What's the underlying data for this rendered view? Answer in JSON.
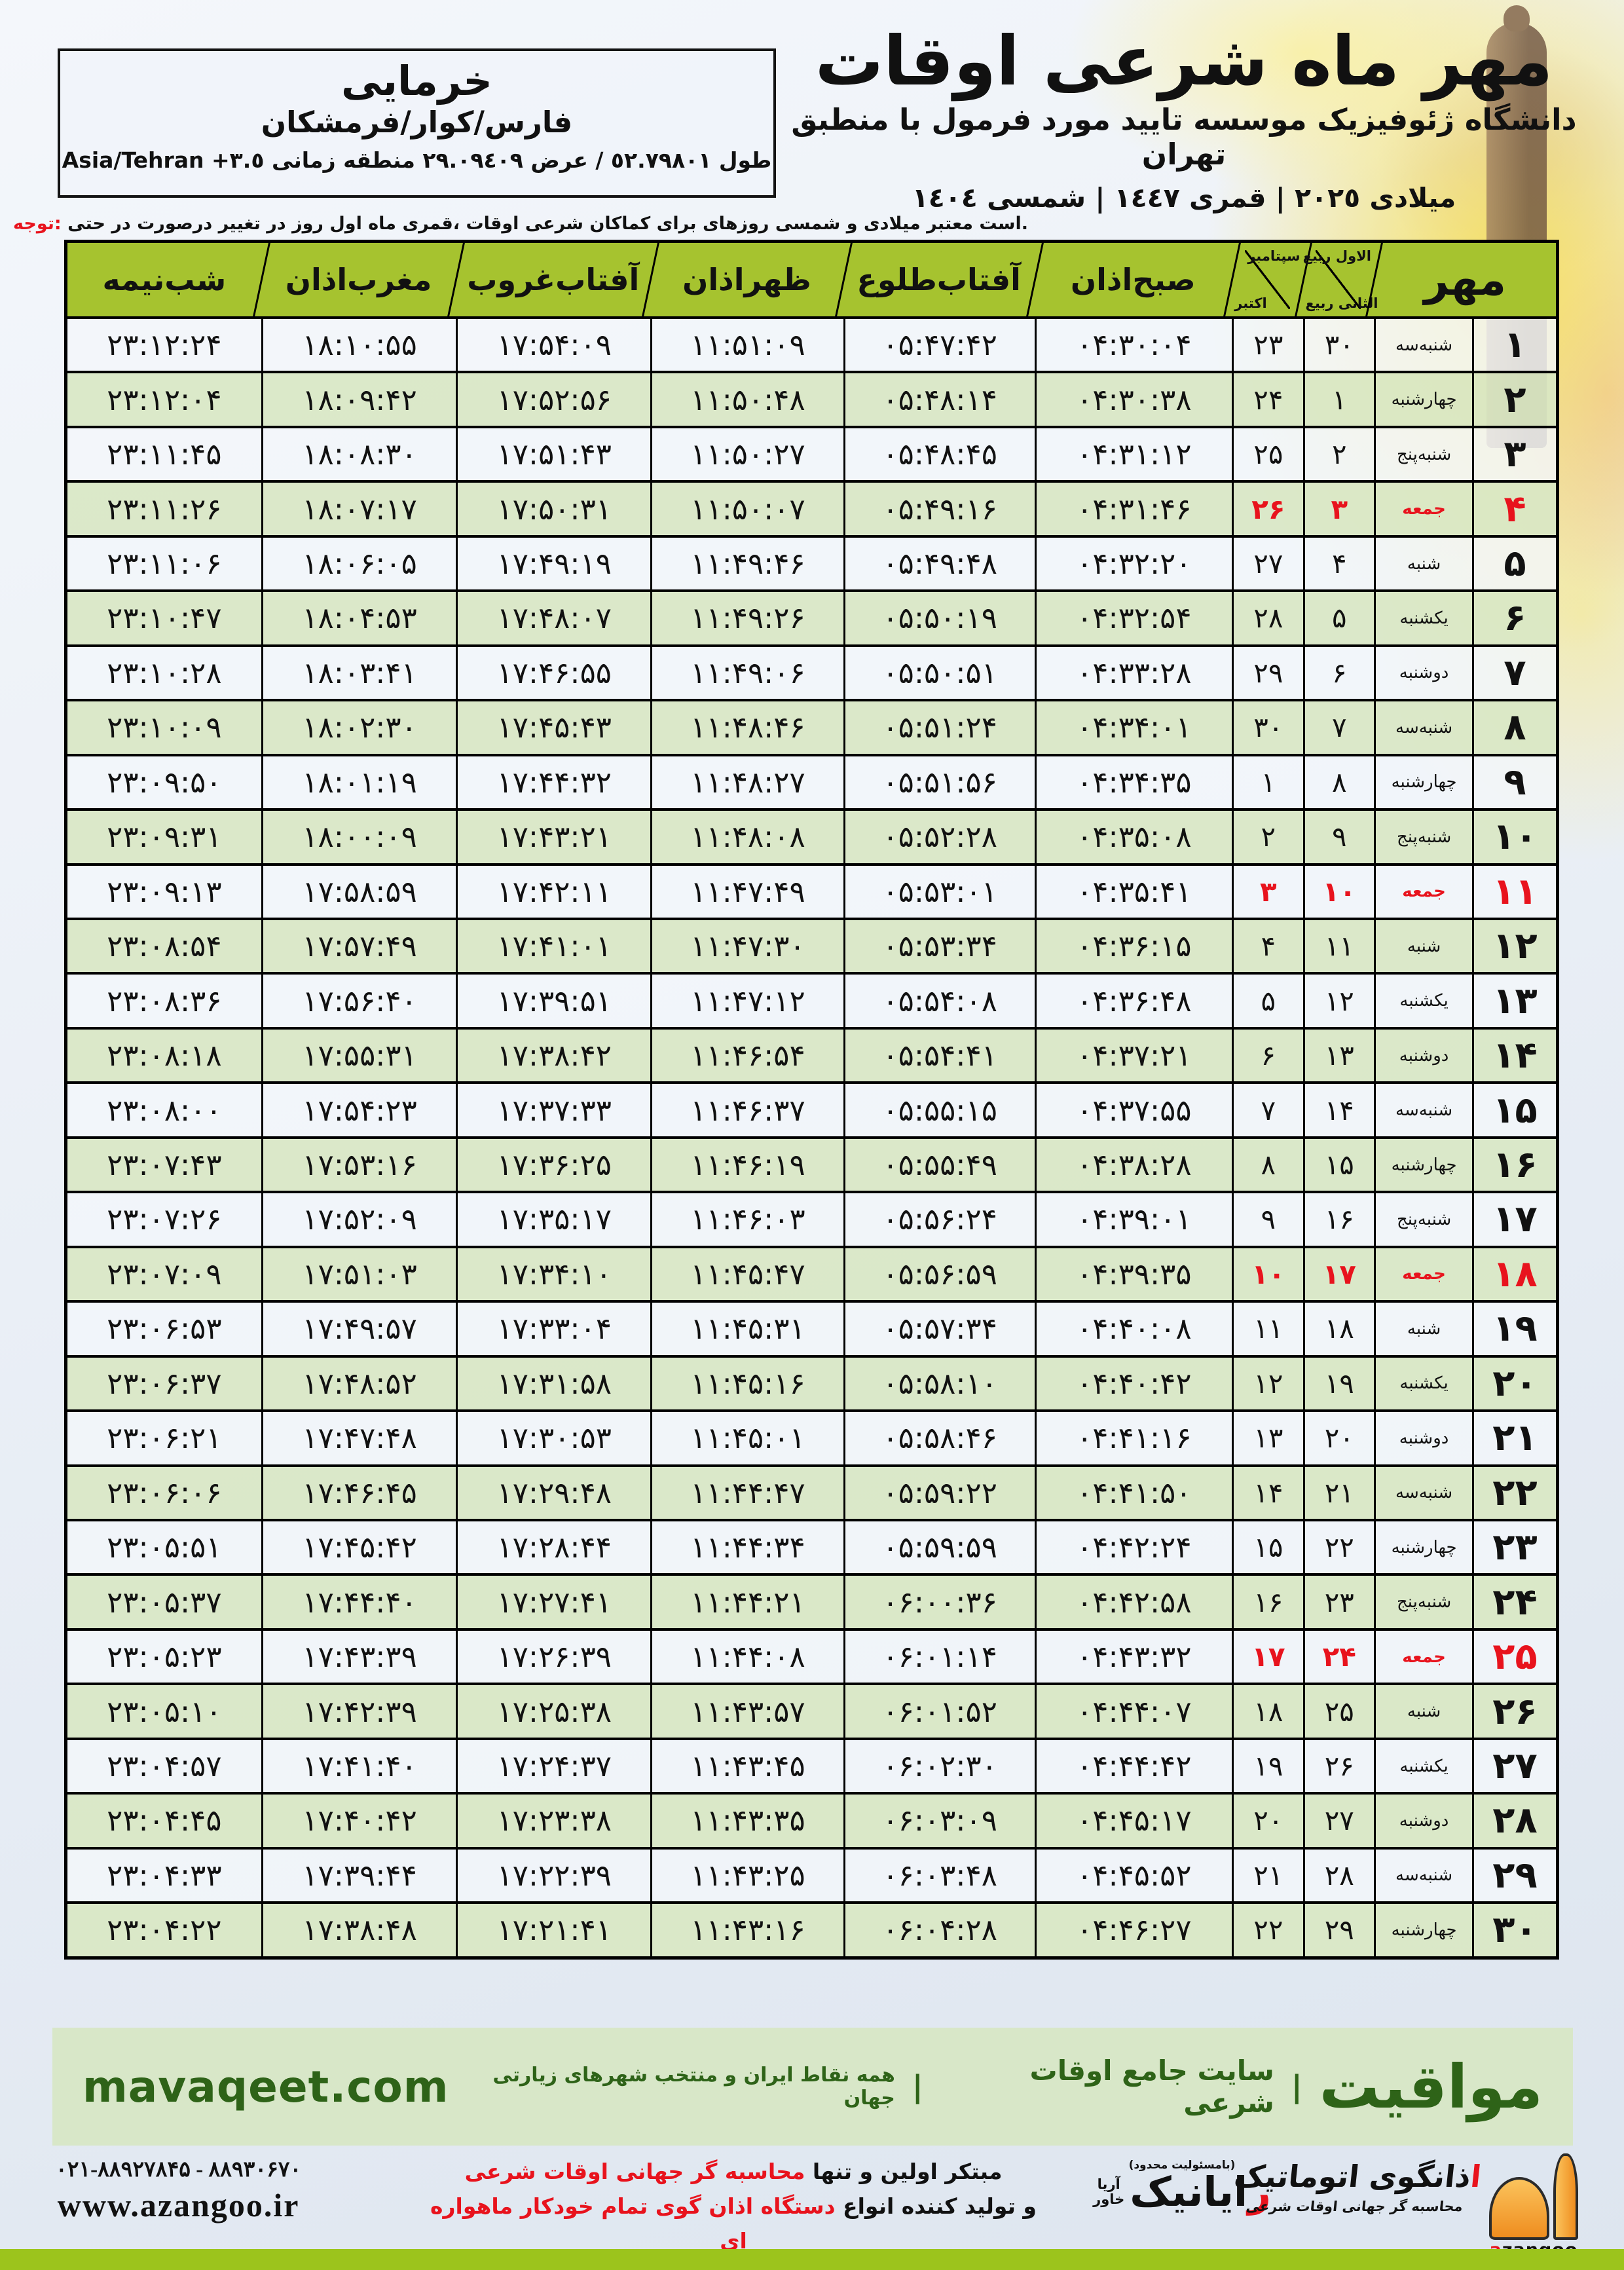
{
  "header": {
    "title": "اوقات شرعی ماه مهر",
    "subtitle": "منطبق با فرمول مورد تایید موسسه ژئوفیزیک دانشگاه تهران",
    "years": "١٤٠٤ شمسی | ١٤٤٧ قمری | ٢٠٢٥ میلادی"
  },
  "location_box": {
    "city": "خرمایی",
    "region_parts": [
      "فرمشکان",
      "کوار",
      "فارس"
    ],
    "coords_fa": "طول ٥٢.٧٩٨٠١ / عرض ٢٩.٠٩٤٠٩ منطقه زمانی",
    "timezone": "Asia/Tehran +٣.٥"
  },
  "note": {
    "text": "توجه: حتی در درصورت تغییر در روز اول ماه قمری، اوقات شرعی کماکان برای روزهای شمسی و میلادی معتبر است."
  },
  "table": {
    "month_label": "مهر",
    "lunar_top": "ربیع الاول",
    "lunar_bottom": "ربیع الثانی",
    "greg_top": "سپتامبر",
    "greg_bottom": "اکتبر",
    "columns": {
      "sobh": "اذان صبح",
      "tolu": "طلوع آفتاب",
      "zohr": "اذان ظهر",
      "ghorub": "غروب آفتاب",
      "maghreb": "اذان مغرب",
      "nimeshab": "نیمه شب"
    },
    "rows": [
      {
        "day": "۱",
        "weekday": "سه شنبه",
        "lunar": "۳۰",
        "greg": "۲۳",
        "sobh": "۰۴:۳۰:۰۴",
        "tolu": "۰۵:۴۷:۴۲",
        "zohr": "۱۱:۵۱:۰۹",
        "ghorub": "۱۷:۵۴:۰۹",
        "maghreb": "۱۸:۱۰:۵۵",
        "nimeshab": "۲۳:۱۲:۲۴",
        "friday": false
      },
      {
        "day": "۲",
        "weekday": "چهارشنبه",
        "lunar": "۱",
        "greg": "۲۴",
        "sobh": "۰۴:۳۰:۳۸",
        "tolu": "۰۵:۴۸:۱۴",
        "zohr": "۱۱:۵۰:۴۸",
        "ghorub": "۱۷:۵۲:۵۶",
        "maghreb": "۱۸:۰۹:۴۲",
        "nimeshab": "۲۳:۱۲:۰۴",
        "friday": false
      },
      {
        "day": "۳",
        "weekday": "پنج شنبه",
        "lunar": "۲",
        "greg": "۲۵",
        "sobh": "۰۴:۳۱:۱۲",
        "tolu": "۰۵:۴۸:۴۵",
        "zohr": "۱۱:۵۰:۲۷",
        "ghorub": "۱۷:۵۱:۴۳",
        "maghreb": "۱۸:۰۸:۳۰",
        "nimeshab": "۲۳:۱۱:۴۵",
        "friday": false
      },
      {
        "day": "۴",
        "weekday": "جمعه",
        "lunar": "۳",
        "greg": "۲۶",
        "sobh": "۰۴:۳۱:۴۶",
        "tolu": "۰۵:۴۹:۱۶",
        "zohr": "۱۱:۵۰:۰۷",
        "ghorub": "۱۷:۵۰:۳۱",
        "maghreb": "۱۸:۰۷:۱۷",
        "nimeshab": "۲۳:۱۱:۲۶",
        "friday": true
      },
      {
        "day": "۵",
        "weekday": "شنبه",
        "lunar": "۴",
        "greg": "۲۷",
        "sobh": "۰۴:۳۲:۲۰",
        "tolu": "۰۵:۴۹:۴۸",
        "zohr": "۱۱:۴۹:۴۶",
        "ghorub": "۱۷:۴۹:۱۹",
        "maghreb": "۱۸:۰۶:۰۵",
        "nimeshab": "۲۳:۱۱:۰۶",
        "friday": false
      },
      {
        "day": "۶",
        "weekday": "یکشنبه",
        "lunar": "۵",
        "greg": "۲۸",
        "sobh": "۰۴:۳۲:۵۴",
        "tolu": "۰۵:۵۰:۱۹",
        "zohr": "۱۱:۴۹:۲۶",
        "ghorub": "۱۷:۴۸:۰۷",
        "maghreb": "۱۸:۰۴:۵۳",
        "nimeshab": "۲۳:۱۰:۴۷",
        "friday": false
      },
      {
        "day": "۷",
        "weekday": "دوشنبه",
        "lunar": "۶",
        "greg": "۲۹",
        "sobh": "۰۴:۳۳:۲۸",
        "tolu": "۰۵:۵۰:۵۱",
        "zohr": "۱۱:۴۹:۰۶",
        "ghorub": "۱۷:۴۶:۵۵",
        "maghreb": "۱۸:۰۳:۴۱",
        "nimeshab": "۲۳:۱۰:۲۸",
        "friday": false
      },
      {
        "day": "۸",
        "weekday": "سه شنبه",
        "lunar": "۷",
        "greg": "۳۰",
        "sobh": "۰۴:۳۴:۰۱",
        "tolu": "۰۵:۵۱:۲۴",
        "zohr": "۱۱:۴۸:۴۶",
        "ghorub": "۱۷:۴۵:۴۳",
        "maghreb": "۱۸:۰۲:۳۰",
        "nimeshab": "۲۳:۱۰:۰۹",
        "friday": false
      },
      {
        "day": "۹",
        "weekday": "چهارشنبه",
        "lunar": "۸",
        "greg": "۱",
        "sobh": "۰۴:۳۴:۳۵",
        "tolu": "۰۵:۵۱:۵۶",
        "zohr": "۱۱:۴۸:۲۷",
        "ghorub": "۱۷:۴۴:۳۲",
        "maghreb": "۱۸:۰۱:۱۹",
        "nimeshab": "۲۳:۰۹:۵۰",
        "friday": false
      },
      {
        "day": "۱۰",
        "weekday": "پنج شنبه",
        "lunar": "۹",
        "greg": "۲",
        "sobh": "۰۴:۳۵:۰۸",
        "tolu": "۰۵:۵۲:۲۸",
        "zohr": "۱۱:۴۸:۰۸",
        "ghorub": "۱۷:۴۳:۲۱",
        "maghreb": "۱۸:۰۰:۰۹",
        "nimeshab": "۲۳:۰۹:۳۱",
        "friday": false
      },
      {
        "day": "۱۱",
        "weekday": "جمعه",
        "lunar": "۱۰",
        "greg": "۳",
        "sobh": "۰۴:۳۵:۴۱",
        "tolu": "۰۵:۵۳:۰۱",
        "zohr": "۱۱:۴۷:۴۹",
        "ghorub": "۱۷:۴۲:۱۱",
        "maghreb": "۱۷:۵۸:۵۹",
        "nimeshab": "۲۳:۰۹:۱۳",
        "friday": true
      },
      {
        "day": "۱۲",
        "weekday": "شنبه",
        "lunar": "۱۱",
        "greg": "۴",
        "sobh": "۰۴:۳۶:۱۵",
        "tolu": "۰۵:۵۳:۳۴",
        "zohr": "۱۱:۴۷:۳۰",
        "ghorub": "۱۷:۴۱:۰۱",
        "maghreb": "۱۷:۵۷:۴۹",
        "nimeshab": "۲۳:۰۸:۵۴",
        "friday": false
      },
      {
        "day": "۱۳",
        "weekday": "یکشنبه",
        "lunar": "۱۲",
        "greg": "۵",
        "sobh": "۰۴:۳۶:۴۸",
        "tolu": "۰۵:۵۴:۰۸",
        "zohr": "۱۱:۴۷:۱۲",
        "ghorub": "۱۷:۳۹:۵۱",
        "maghreb": "۱۷:۵۶:۴۰",
        "nimeshab": "۲۳:۰۸:۳۶",
        "friday": false
      },
      {
        "day": "۱۴",
        "weekday": "دوشنبه",
        "lunar": "۱۳",
        "greg": "۶",
        "sobh": "۰۴:۳۷:۲۱",
        "tolu": "۰۵:۵۴:۴۱",
        "zohr": "۱۱:۴۶:۵۴",
        "ghorub": "۱۷:۳۸:۴۲",
        "maghreb": "۱۷:۵۵:۳۱",
        "nimeshab": "۲۳:۰۸:۱۸",
        "friday": false
      },
      {
        "day": "۱۵",
        "weekday": "سه شنبه",
        "lunar": "۱۴",
        "greg": "۷",
        "sobh": "۰۴:۳۷:۵۵",
        "tolu": "۰۵:۵۵:۱۵",
        "zohr": "۱۱:۴۶:۳۷",
        "ghorub": "۱۷:۳۷:۳۳",
        "maghreb": "۱۷:۵۴:۲۳",
        "nimeshab": "۲۳:۰۸:۰۰",
        "friday": false
      },
      {
        "day": "۱۶",
        "weekday": "چهارشنبه",
        "lunar": "۱۵",
        "greg": "۸",
        "sobh": "۰۴:۳۸:۲۸",
        "tolu": "۰۵:۵۵:۴۹",
        "zohr": "۱۱:۴۶:۱۹",
        "ghorub": "۱۷:۳۶:۲۵",
        "maghreb": "۱۷:۵۳:۱۶",
        "nimeshab": "۲۳:۰۷:۴۳",
        "friday": false
      },
      {
        "day": "۱۷",
        "weekday": "پنج شنبه",
        "lunar": "۱۶",
        "greg": "۹",
        "sobh": "۰۴:۳۹:۰۱",
        "tolu": "۰۵:۵۶:۲۴",
        "zohr": "۱۱:۴۶:۰۳",
        "ghorub": "۱۷:۳۵:۱۷",
        "maghreb": "۱۷:۵۲:۰۹",
        "nimeshab": "۲۳:۰۷:۲۶",
        "friday": false
      },
      {
        "day": "۱۸",
        "weekday": "جمعه",
        "lunar": "۱۷",
        "greg": "۱۰",
        "sobh": "۰۴:۳۹:۳۵",
        "tolu": "۰۵:۵۶:۵۹",
        "zohr": "۱۱:۴۵:۴۷",
        "ghorub": "۱۷:۳۴:۱۰",
        "maghreb": "۱۷:۵۱:۰۳",
        "nimeshab": "۲۳:۰۷:۰۹",
        "friday": true
      },
      {
        "day": "۱۹",
        "weekday": "شنبه",
        "lunar": "۱۸",
        "greg": "۱۱",
        "sobh": "۰۴:۴۰:۰۸",
        "tolu": "۰۵:۵۷:۳۴",
        "zohr": "۱۱:۴۵:۳۱",
        "ghorub": "۱۷:۳۳:۰۴",
        "maghreb": "۱۷:۴۹:۵۷",
        "nimeshab": "۲۳:۰۶:۵۳",
        "friday": false
      },
      {
        "day": "۲۰",
        "weekday": "یکشنبه",
        "lunar": "۱۹",
        "greg": "۱۲",
        "sobh": "۰۴:۴۰:۴۲",
        "tolu": "۰۵:۵۸:۱۰",
        "zohr": "۱۱:۴۵:۱۶",
        "ghorub": "۱۷:۳۱:۵۸",
        "maghreb": "۱۷:۴۸:۵۲",
        "nimeshab": "۲۳:۰۶:۳۷",
        "friday": false
      },
      {
        "day": "۲۱",
        "weekday": "دوشنبه",
        "lunar": "۲۰",
        "greg": "۱۳",
        "sobh": "۰۴:۴۱:۱۶",
        "tolu": "۰۵:۵۸:۴۶",
        "zohr": "۱۱:۴۵:۰۱",
        "ghorub": "۱۷:۳۰:۵۳",
        "maghreb": "۱۷:۴۷:۴۸",
        "nimeshab": "۲۳:۰۶:۲۱",
        "friday": false
      },
      {
        "day": "۲۲",
        "weekday": "سه شنبه",
        "lunar": "۲۱",
        "greg": "۱۴",
        "sobh": "۰۴:۴۱:۵۰",
        "tolu": "۰۵:۵۹:۲۲",
        "zohr": "۱۱:۴۴:۴۷",
        "ghorub": "۱۷:۲۹:۴۸",
        "maghreb": "۱۷:۴۶:۴۵",
        "nimeshab": "۲۳:۰۶:۰۶",
        "friday": false
      },
      {
        "day": "۲۳",
        "weekday": "چهارشنبه",
        "lunar": "۲۲",
        "greg": "۱۵",
        "sobh": "۰۴:۴۲:۲۴",
        "tolu": "۰۵:۵۹:۵۹",
        "zohr": "۱۱:۴۴:۳۴",
        "ghorub": "۱۷:۲۸:۴۴",
        "maghreb": "۱۷:۴۵:۴۲",
        "nimeshab": "۲۳:۰۵:۵۱",
        "friday": false
      },
      {
        "day": "۲۴",
        "weekday": "پنج شنبه",
        "lunar": "۲۳",
        "greg": "۱۶",
        "sobh": "۰۴:۴۲:۵۸",
        "tolu": "۰۶:۰۰:۳۶",
        "zohr": "۱۱:۴۴:۲۱",
        "ghorub": "۱۷:۲۷:۴۱",
        "maghreb": "۱۷:۴۴:۴۰",
        "nimeshab": "۲۳:۰۵:۳۷",
        "friday": false
      },
      {
        "day": "۲۵",
        "weekday": "جمعه",
        "lunar": "۲۴",
        "greg": "۱۷",
        "sobh": "۰۴:۴۳:۳۲",
        "tolu": "۰۶:۰۱:۱۴",
        "zohr": "۱۱:۴۴:۰۸",
        "ghorub": "۱۷:۲۶:۳۹",
        "maghreb": "۱۷:۴۳:۳۹",
        "nimeshab": "۲۳:۰۵:۲۳",
        "friday": true
      },
      {
        "day": "۲۶",
        "weekday": "شنبه",
        "lunar": "۲۵",
        "greg": "۱۸",
        "sobh": "۰۴:۴۴:۰۷",
        "tolu": "۰۶:۰۱:۵۲",
        "zohr": "۱۱:۴۳:۵۷",
        "ghorub": "۱۷:۲۵:۳۸",
        "maghreb": "۱۷:۴۲:۳۹",
        "nimeshab": "۲۳:۰۵:۱۰",
        "friday": false
      },
      {
        "day": "۲۷",
        "weekday": "یکشنبه",
        "lunar": "۲۶",
        "greg": "۱۹",
        "sobh": "۰۴:۴۴:۴۲",
        "tolu": "۰۶:۰۲:۳۰",
        "zohr": "۱۱:۴۳:۴۵",
        "ghorub": "۱۷:۲۴:۳۷",
        "maghreb": "۱۷:۴۱:۴۰",
        "nimeshab": "۲۳:۰۴:۵۷",
        "friday": false
      },
      {
        "day": "۲۸",
        "weekday": "دوشنبه",
        "lunar": "۲۷",
        "greg": "۲۰",
        "sobh": "۰۴:۴۵:۱۷",
        "tolu": "۰۶:۰۳:۰۹",
        "zohr": "۱۱:۴۳:۳۵",
        "ghorub": "۱۷:۲۳:۳۸",
        "maghreb": "۱۷:۴۰:۴۲",
        "nimeshab": "۲۳:۰۴:۴۵",
        "friday": false
      },
      {
        "day": "۲۹",
        "weekday": "سه شنبه",
        "lunar": "۲۸",
        "greg": "۲۱",
        "sobh": "۰۴:۴۵:۵۲",
        "tolu": "۰۶:۰۳:۴۸",
        "zohr": "۱۱:۴۳:۲۵",
        "ghorub": "۱۷:۲۲:۳۹",
        "maghreb": "۱۷:۳۹:۴۴",
        "nimeshab": "۲۳:۰۴:۳۳",
        "friday": false
      },
      {
        "day": "۳۰",
        "weekday": "چهارشنبه",
        "lunar": "۲۹",
        "greg": "۲۲",
        "sobh": "۰۴:۴۶:۲۷",
        "tolu": "۰۶:۰۴:۲۸",
        "zohr": "۱۱:۴۳:۱۶",
        "ghorub": "۱۷:۲۱:۴۱",
        "maghreb": "۱۷:۳۸:۴۸",
        "nimeshab": "۲۳:۰۴:۲۲",
        "friday": false
      }
    ]
  },
  "band": {
    "url": "mavaqeet.com",
    "logo": "مواقیت",
    "mid": "سایت جامع اوقات شرعی",
    "small": "همه نقاط ایران و منتخب شهرهای زیارتی جهان",
    "separator": "|"
  },
  "footer": {
    "phone": "۰۲۱-۸۸۹۲۷۸۴۵ - ۸۸۹۳۰۶۷۰",
    "site": "www.azangoo.ir",
    "line1_black": "مبتکر اولین و تنها ",
    "line1_red": "محاسبه گر جهانی اوقات شرعی",
    "line2_black": "و تولید کننده انواع ",
    "line2_red": "دستگاه اذان گوی تمام خودکار ماهواره ای",
    "rayanik": {
      "tiny": "(بامسئولیت محدود)",
      "name_red": "ر",
      "name_rest": "ایانیک",
      "sub_top": "آریا",
      "sub_bottom": "خاور"
    },
    "azangoo": {
      "title_red": "ا",
      "title_rest": "ذانگوی اتوماتیک",
      "tagline": "محاسبه گر جهانی اوقات شرعی",
      "latin_red": "a",
      "latin_rest": "zangoo"
    }
  },
  "colors": {
    "header_green": "#a6c32f",
    "row_green": "#d9e7c4",
    "friday_red": "#e8131d",
    "band_bg": "#d8e7c8",
    "band_text": "#2e6318",
    "bottom_band": "#9cc41c",
    "azangoo_orange": "#ef8d1f"
  }
}
